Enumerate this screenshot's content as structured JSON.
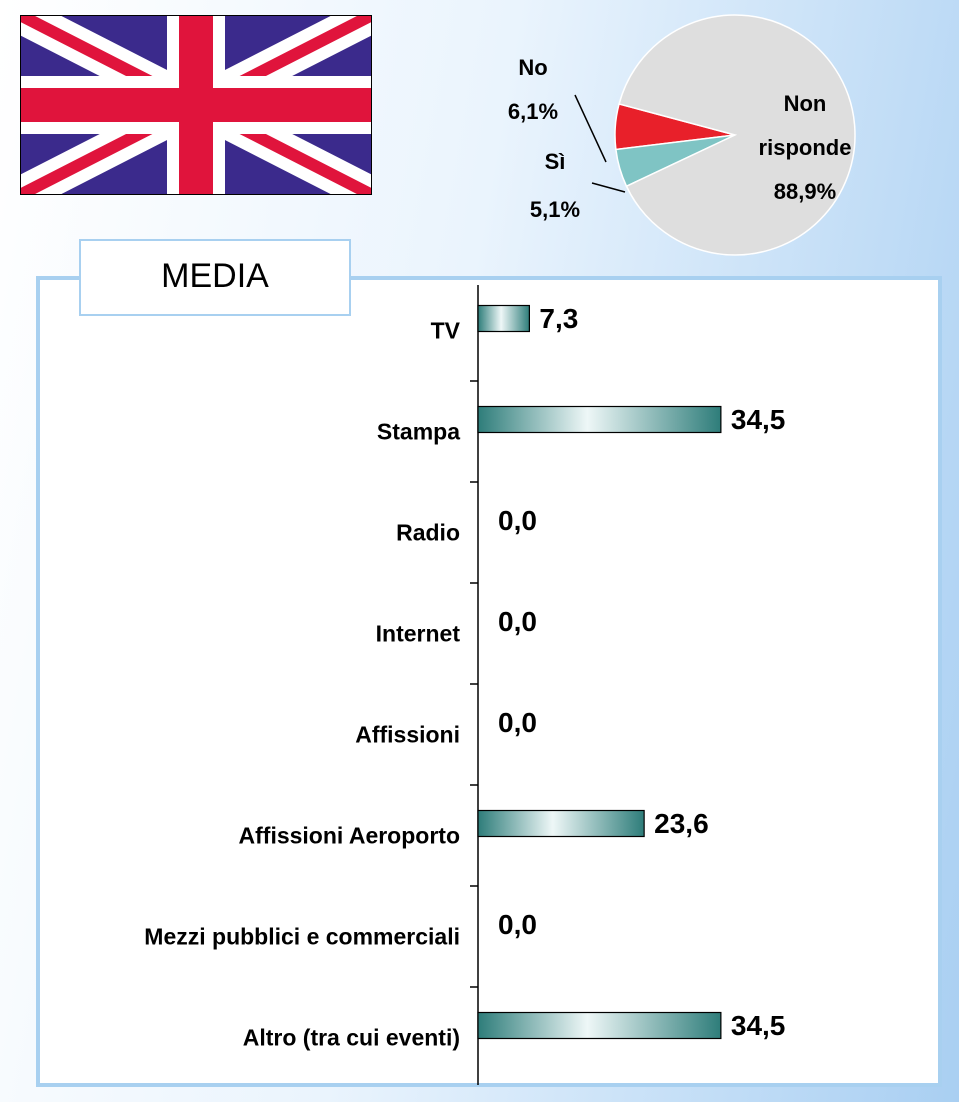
{
  "chart_data": [
    {
      "type": "pie",
      "categories": [
        "No",
        "Sì",
        "Non risponde"
      ],
      "values": [
        6.1,
        5.1,
        88.9
      ],
      "value_labels": [
        "6,1%",
        "5,1%",
        "88,9%"
      ],
      "colors": [
        "#e8202a",
        "#7fc4c4",
        "#dedede"
      ]
    },
    {
      "type": "bar",
      "title": "MEDIA",
      "orientation": "horizontal",
      "categories": [
        "TV",
        "Stampa",
        "Radio",
        "Internet",
        "Affissioni",
        "Affissioni Aeroporto",
        "Mezzi pubblici e commerciali",
        "Altro (tra cui eventi)"
      ],
      "values": [
        7.3,
        34.5,
        0.0,
        0.0,
        0.0,
        23.6,
        0.0,
        34.5
      ],
      "value_labels": [
        "7,3",
        "34,5",
        "0,0",
        "0,0",
        "0,0",
        "23,6",
        "0,0",
        "34,5"
      ],
      "color": "#2e7d7a"
    }
  ]
}
